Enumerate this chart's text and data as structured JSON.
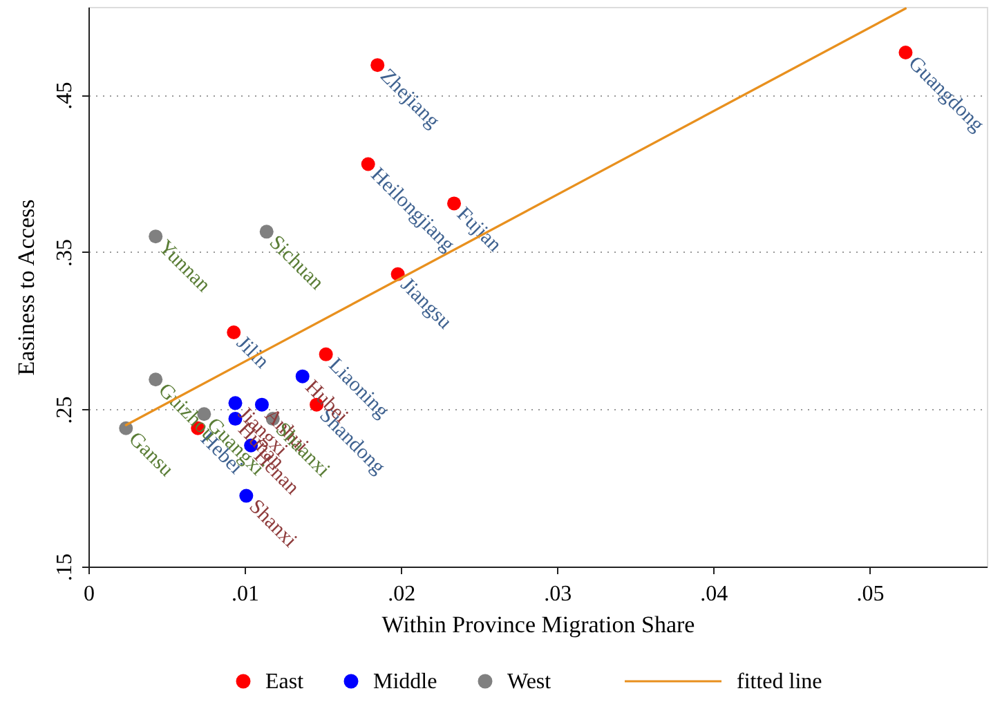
{
  "chart_data": {
    "type": "scatter",
    "xlabel": "Within Province Migration Share",
    "ylabel": "Easiness to Access",
    "xlim": [
      0,
      0.0575
    ],
    "ylim": [
      0.15,
      0.506
    ],
    "xticks": [
      {
        "value": 0,
        "label": "0"
      },
      {
        "value": 0.01,
        "label": ".01"
      },
      {
        "value": 0.02,
        "label": ".02"
      },
      {
        "value": 0.03,
        "label": ".03"
      },
      {
        "value": 0.04,
        "label": ".04"
      },
      {
        "value": 0.05,
        "label": ".05"
      }
    ],
    "yticks": [
      {
        "value": 0.15,
        "label": ".15"
      },
      {
        "value": 0.25,
        "label": ".25"
      },
      {
        "value": 0.35,
        "label": ".35"
      },
      {
        "value": 0.45,
        "label": ".45"
      }
    ],
    "grid": "y",
    "legend": "bottom",
    "marker": "circle",
    "series": [
      {
        "name": "East",
        "color": "#ff0000",
        "x": [
          0.0523,
          0.0185,
          0.0179,
          0.0234,
          0.0198,
          0.0093,
          0.0152,
          0.0146,
          0.007
        ],
        "values": [
          0.477,
          0.469,
          0.406,
          0.381,
          0.336,
          0.299,
          0.285,
          0.253,
          0.238
        ],
        "value_labels": [
          "Guangdong",
          "Zhejiang",
          "Heilongjiang",
          "Fujian",
          "Jiangsu",
          "Jilin",
          "Liaoning",
          "Shandong",
          "Hebei"
        ]
      },
      {
        "name": "Middle",
        "color": "#0000ff",
        "x": [
          0.0137,
          0.0094,
          0.0111,
          0.0094,
          0.0104,
          0.0101
        ],
        "values": [
          0.271,
          0.254,
          0.253,
          0.244,
          0.227,
          0.195
        ],
        "value_labels": [
          "Hubei",
          "Jiangxi",
          "Anhui",
          "Hunan",
          "Henan",
          "Shanxi"
        ]
      },
      {
        "name": "West",
        "color": "#808080",
        "x": [
          0.0043,
          0.0114,
          0.0043,
          0.0024,
          0.0074,
          0.0118
        ],
        "values": [
          0.36,
          0.363,
          0.269,
          0.238,
          0.247,
          0.244
        ],
        "value_labels": [
          "Yunnan",
          "Sichuan",
          "Guizhou",
          "Gansu",
          "Guangxi",
          "Shaanxi"
        ]
      },
      {
        "name": "fitted line",
        "type": "line",
        "color": "#e8901e",
        "marker": "none",
        "line_style": "solid",
        "x": [
          0.0024,
          0.0523
        ],
        "values": [
          0.24,
          0.505
        ]
      }
    ]
  }
}
